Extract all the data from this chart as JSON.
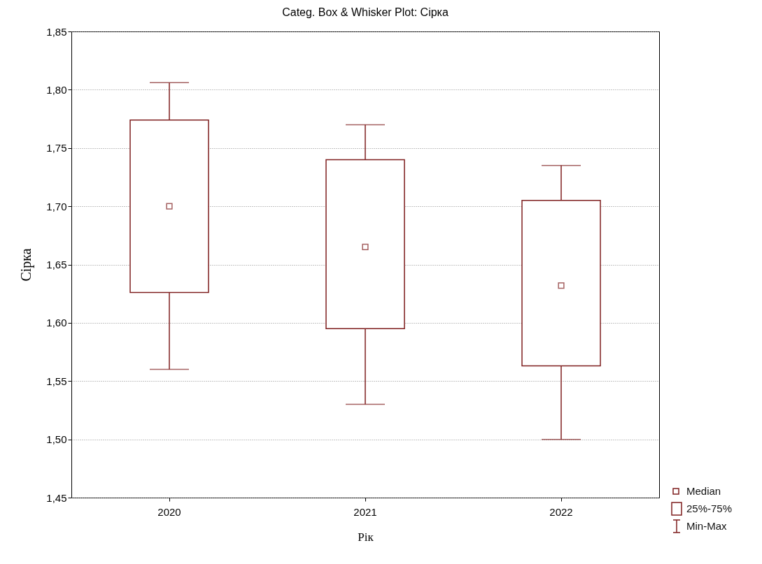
{
  "chart_data": {
    "type": "box",
    "title": "Categ. Box & Whisker Plot: Сірка",
    "xlabel": "Рік",
    "ylabel": "Сірка",
    "categories": [
      "2020",
      "2021",
      "2022"
    ],
    "series": [
      {
        "color": "#7f1f1f",
        "boxes": [
          {
            "low": 1.56,
            "q1": 1.626,
            "median": 1.7,
            "q3": 1.774,
            "high": 1.806
          },
          {
            "low": 1.53,
            "q1": 1.595,
            "median": 1.665,
            "q3": 1.74,
            "high": 1.77
          },
          {
            "low": 1.5,
            "q1": 1.563,
            "median": 1.632,
            "q3": 1.705,
            "high": 1.735
          }
        ]
      }
    ],
    "ylim": [
      1.45,
      1.85
    ],
    "yticks": [
      {
        "value": 1.45,
        "label": "1,45"
      },
      {
        "value": 1.5,
        "label": "1,50"
      },
      {
        "value": 1.55,
        "label": "1,55"
      },
      {
        "value": 1.6,
        "label": "1,60"
      },
      {
        "value": 1.65,
        "label": "1,65"
      },
      {
        "value": 1.7,
        "label": "1,70"
      },
      {
        "value": 1.75,
        "label": "1,75"
      },
      {
        "value": 1.8,
        "label": "1,80"
      },
      {
        "value": 1.85,
        "label": "1,85"
      }
    ],
    "grid": "y",
    "annotations": [
      "Median",
      "25%-75%",
      "Min-Max"
    ]
  }
}
